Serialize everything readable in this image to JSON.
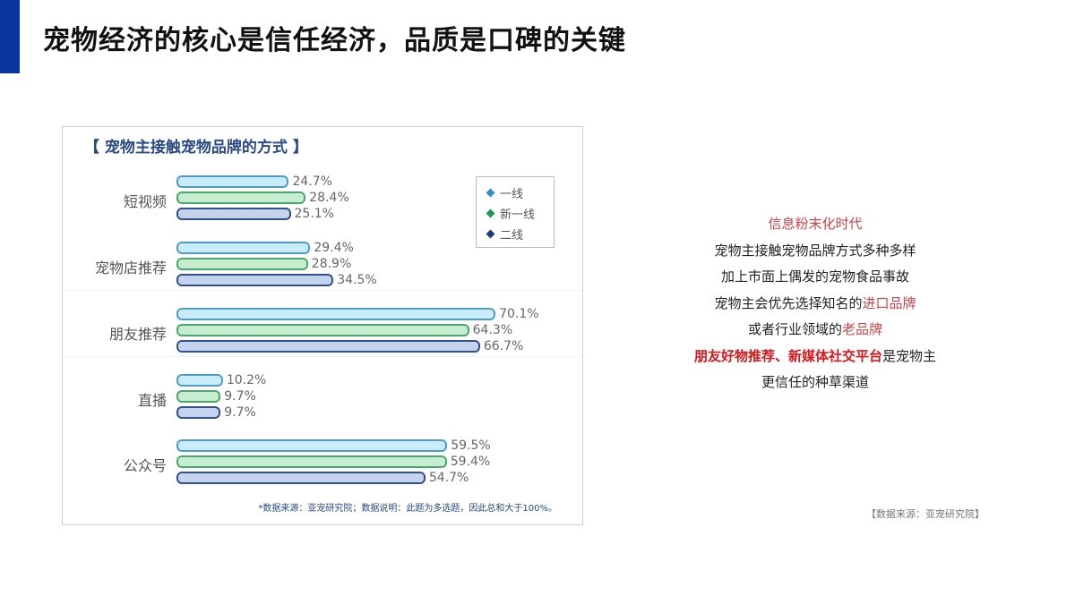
{
  "header": {
    "title": "宠物经济的核心是信任经济，品质是口碑的关键",
    "accent_color": "#0a35a0"
  },
  "chart": {
    "title": "【 宠物主接触宠物品牌的方式 】",
    "legend": [
      {
        "label": "一线",
        "color": "#2f8fc7"
      },
      {
        "label": "新一线",
        "color": "#1f9a4a"
      },
      {
        "label": "二线",
        "color": "#1d3a80"
      }
    ],
    "groups": [
      {
        "label": "短视频",
        "values": [
          "24.7%",
          "28.4%",
          "25.1%"
        ]
      },
      {
        "label": "宠物店推荐",
        "values": [
          "29.4%",
          "28.9%",
          "34.5%"
        ]
      },
      {
        "label": "朋友推荐",
        "values": [
          "70.1%",
          "64.3%",
          "66.7%"
        ]
      },
      {
        "label": "直播",
        "values": [
          "10.2%",
          "9.7%",
          "9.7%"
        ]
      },
      {
        "label": "公众号",
        "values": [
          "59.5%",
          "59.4%",
          "54.7%"
        ]
      }
    ],
    "note": "*数据来源：亚宠研究院；数据说明：此题为多选题，因此总和大于100%。"
  },
  "chart_data": {
    "type": "bar",
    "orientation": "horizontal",
    "title": "宠物主接触宠物品牌的方式",
    "categories": [
      "短视频",
      "宠物店推荐",
      "朋友推荐",
      "直播",
      "公众号"
    ],
    "series": [
      {
        "name": "一线",
        "values": [
          24.7,
          29.4,
          70.1,
          10.2,
          59.5
        ]
      },
      {
        "name": "新一线",
        "values": [
          28.4,
          28.9,
          64.3,
          9.7,
          59.4
        ]
      },
      {
        "name": "二线",
        "values": [
          25.1,
          34.5,
          66.7,
          9.7,
          54.7
        ]
      }
    ],
    "unit": "%",
    "legend_position": "top-right",
    "grid": false,
    "xlabel": "",
    "ylabel": "",
    "note": "*数据来源：亚宠研究院；数据说明：此题为多选题，因此总和大于100%。"
  },
  "side": {
    "line1": "信息粉末化时代",
    "line2": "宠物主接触宠物品牌方式多种多样",
    "line3": "加上市面上偶发的宠物食品事故",
    "line4_a": "宠物主会优先选择知名的",
    "line4_b": "进口品牌",
    "line5_a": "或者行业领域的",
    "line5_b": "老品牌",
    "line6_a": "朋友好物推荐、新媒体社交平台",
    "line6_b": "是宠物主",
    "line7": "更信任的种草渠道"
  },
  "source": "【数据来源：亚宠研究院】"
}
